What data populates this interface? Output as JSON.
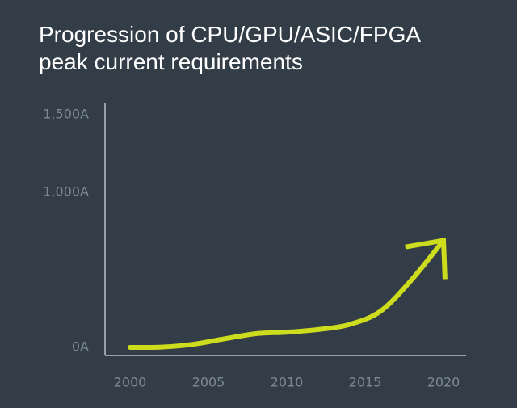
{
  "chart_data": {
    "type": "line",
    "title_lines": [
      "Progression of CPU/GPU/ASIC/FPGA",
      "peak current requirements"
    ],
    "x": [
      2000,
      2002,
      2004,
      2006,
      2008,
      2010,
      2012,
      2014,
      2016,
      2018,
      2020
    ],
    "series": [
      {
        "values": [
          0,
          2,
          20,
          55,
          88,
          98,
          115,
          148,
          235,
          440,
          690
        ]
      }
    ],
    "x_tick_labels": [
      "2000",
      "2005",
      "2010",
      "2015",
      "2020"
    ],
    "x_ticks": [
      2000,
      2005,
      2010,
      2015,
      2020
    ],
    "y_tick_labels": [
      "0A",
      "1,000A",
      "1,500A"
    ],
    "y_ticks": [
      0,
      1000,
      1500
    ],
    "end_marker": "arrow",
    "grid": false,
    "colors": {
      "background": "#323d48",
      "line": "#cddc1c",
      "axis": "#b9c0c7",
      "tick_text": "#7d8893",
      "title": "#ffffff"
    }
  }
}
